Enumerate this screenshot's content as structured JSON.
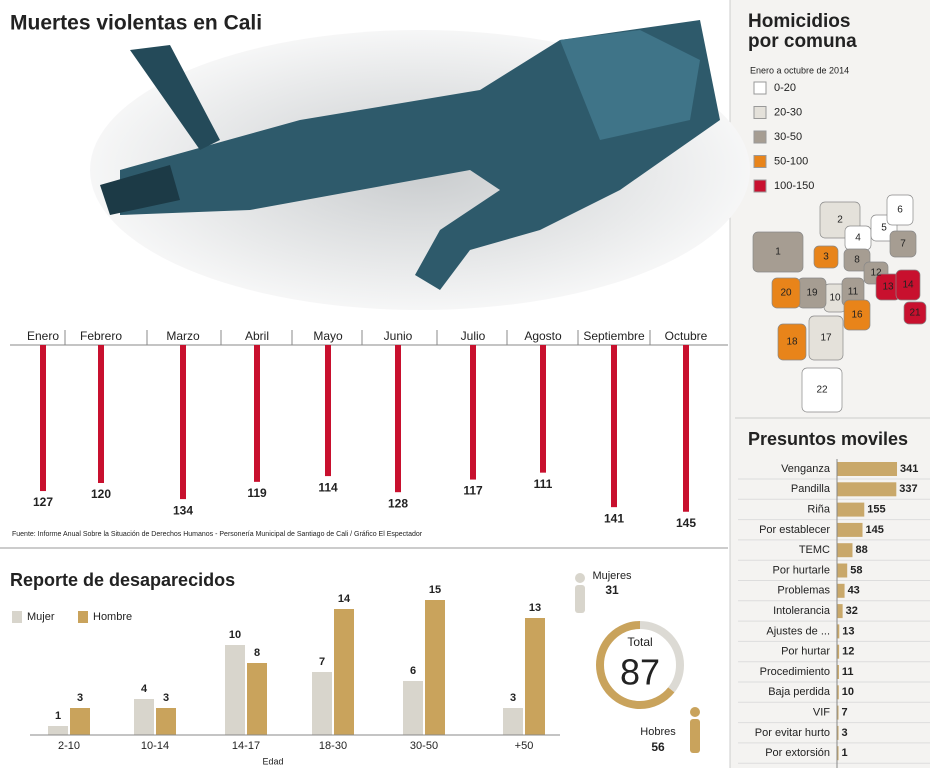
{
  "title": "Muertes violentas en Cali",
  "chart_data": [
    {
      "type": "bar",
      "categories": [
        "Enero",
        "Febrero",
        "Marzo",
        "Abril",
        "Mayo",
        "Junio",
        "Julio",
        "Agosto",
        "Septiembre",
        "Octubre"
      ],
      "values": [
        127,
        120,
        134,
        119,
        114,
        128,
        117,
        111,
        141,
        145
      ],
      "color": "#c8102e",
      "source": "Fuente: Informe Anual Sobre la Situación de Derechos Humanos - Personería Municipal de Santiago de Cali / Gráfico El Espectador"
    },
    {
      "type": "map",
      "title": "Homicidios por comuna",
      "subtitle": "Enero a octubre de 2014",
      "legend": [
        {
          "label": "0-20",
          "color": "#ffffff"
        },
        {
          "label": "20-30",
          "color": "#e4e1da"
        },
        {
          "label": "30-50",
          "color": "#a69d92"
        },
        {
          "label": "50-100",
          "color": "#e8841a"
        },
        {
          "label": "100-150",
          "color": "#c8102e"
        }
      ],
      "regions": [
        {
          "label": "1",
          "color": "#a69d92"
        },
        {
          "label": "2",
          "color": "#e4e1da"
        },
        {
          "label": "3",
          "color": "#e8841a"
        },
        {
          "label": "4",
          "color": "#ffffff"
        },
        {
          "label": "5",
          "color": "#ffffff"
        },
        {
          "label": "6",
          "color": "#ffffff"
        },
        {
          "label": "7",
          "color": "#a69d92"
        },
        {
          "label": "8",
          "color": "#a69d92"
        },
        {
          "label": "10",
          "color": "#e4e1da"
        },
        {
          "label": "11",
          "color": "#a69d92"
        },
        {
          "label": "12",
          "color": "#a69d92"
        },
        {
          "label": "13",
          "color": "#c8102e"
        },
        {
          "label": "14",
          "color": "#c8102e"
        },
        {
          "label": "16",
          "color": "#e8841a"
        },
        {
          "label": "17",
          "color": "#e4e1da"
        },
        {
          "label": "18",
          "color": "#e8841a"
        },
        {
          "label": "19",
          "color": "#a69d92"
        },
        {
          "label": "20",
          "color": "#e8841a"
        },
        {
          "label": "21",
          "color": "#c8102e"
        },
        {
          "label": "22",
          "color": "#ffffff"
        }
      ]
    },
    {
      "type": "barh",
      "title": "Presuntos moviles",
      "categories": [
        "Venganza",
        "Pandilla",
        "Riña",
        "Por establecer",
        "TEMC",
        "Por hurtarle",
        "Problemas",
        "Intolerancia",
        "Ajustes de ...",
        "Por hurtar",
        "Procedimiento",
        "Baja perdida",
        "VIF",
        "Por evitar hurto",
        "Por extorsión"
      ],
      "values": [
        341,
        337,
        155,
        145,
        88,
        58,
        43,
        32,
        13,
        12,
        11,
        10,
        7,
        3,
        1
      ],
      "color": "#c9a86a"
    },
    {
      "type": "grouped-bar",
      "title": "Reporte de desaparecidos",
      "x_label": "Edad",
      "categories": [
        "2-10",
        "10-14",
        "14-17",
        "18-30",
        "30-50",
        "+50"
      ],
      "series": [
        {
          "name": "Mujer",
          "color": "#d8d5cc",
          "values": [
            1,
            4,
            10,
            7,
            6,
            3
          ]
        },
        {
          "name": "Hombre",
          "color": "#c9a35c",
          "values": [
            3,
            3,
            8,
            14,
            15,
            13
          ]
        }
      ]
    },
    {
      "type": "donut",
      "total_label": "Total",
      "total": 87,
      "categories": [
        "Mujeres",
        "Hobres"
      ],
      "values": [
        31,
        56
      ],
      "colors": [
        "#dcdad4",
        "#c9a35c"
      ]
    }
  ]
}
